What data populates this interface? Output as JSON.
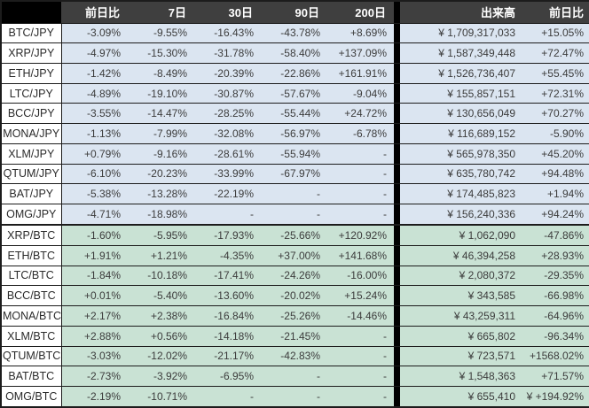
{
  "colors": {
    "header_bg": "#3f3f3f",
    "header_corner_bg": "#000000",
    "header_text": "#ffffff",
    "jpy_row_bg": "#dbe5f1",
    "btc_row_bg": "#c9e2d4",
    "name_cell_bg": "#ffffff",
    "grid": "#1c1c1c",
    "cell_text": "#3c3c3c",
    "divider": "#000000"
  },
  "chart_data": {
    "type": "table",
    "title": "",
    "columns": [
      {
        "key": "pair",
        "label": ""
      },
      {
        "key": "d1",
        "label": "前日比"
      },
      {
        "key": "d7",
        "label": "7日"
      },
      {
        "key": "d30",
        "label": "30日"
      },
      {
        "key": "d90",
        "label": "90日"
      },
      {
        "key": "d200",
        "label": "200日"
      },
      {
        "key": "volume",
        "label": "出来高"
      },
      {
        "key": "vol_d1",
        "label": "前日比"
      }
    ],
    "sections": [
      {
        "id": "jpy",
        "rows": [
          {
            "pair": "BTC/JPY",
            "d1": "-3.09%",
            "d7": "-9.55%",
            "d30": "-16.43%",
            "d90": "-43.78%",
            "d200": "+8.69%",
            "volume": "¥ 1,709,317,033",
            "vol_d1": "+15.05%"
          },
          {
            "pair": "XRP/JPY",
            "d1": "-4.97%",
            "d7": "-15.30%",
            "d30": "-31.78%",
            "d90": "-58.40%",
            "d200": "+137.09%",
            "volume": "¥ 1,587,349,448",
            "vol_d1": "+72.47%"
          },
          {
            "pair": "ETH/JPY",
            "d1": "-1.42%",
            "d7": "-8.49%",
            "d30": "-20.39%",
            "d90": "-22.86%",
            "d200": "+161.91%",
            "volume": "¥ 1,526,736,407",
            "vol_d1": "+55.45%"
          },
          {
            "pair": "LTC/JPY",
            "d1": "-4.89%",
            "d7": "-19.10%",
            "d30": "-30.87%",
            "d90": "-57.67%",
            "d200": "-9.04%",
            "volume": "¥ 155,857,151",
            "vol_d1": "+72.31%"
          },
          {
            "pair": "BCC/JPY",
            "d1": "-3.55%",
            "d7": "-14.47%",
            "d30": "-28.25%",
            "d90": "-55.44%",
            "d200": "+24.72%",
            "volume": "¥ 130,656,049",
            "vol_d1": "+70.27%"
          },
          {
            "pair": "MONA/JPY",
            "d1": "-1.13%",
            "d7": "-7.99%",
            "d30": "-32.08%",
            "d90": "-56.97%",
            "d200": "-6.78%",
            "volume": "¥ 116,689,152",
            "vol_d1": "-5.90%"
          },
          {
            "pair": "XLM/JPY",
            "d1": "+0.79%",
            "d7": "-9.16%",
            "d30": "-28.61%",
            "d90": "-55.94%",
            "d200": "-",
            "volume": "¥ 565,978,350",
            "vol_d1": "+45.20%"
          },
          {
            "pair": "QTUM/JPY",
            "d1": "-6.10%",
            "d7": "-20.23%",
            "d30": "-33.99%",
            "d90": "-67.97%",
            "d200": "-",
            "volume": "¥ 635,780,742",
            "vol_d1": "+94.48%"
          },
          {
            "pair": "BAT/JPY",
            "d1": "-5.38%",
            "d7": "-13.28%",
            "d30": "-22.19%",
            "d90": "-",
            "d200": "-",
            "volume": "¥ 174,485,823",
            "vol_d1": "+1.94%"
          },
          {
            "pair": "OMG/JPY",
            "d1": "-4.71%",
            "d7": "-18.98%",
            "d30": "-",
            "d90": "-",
            "d200": "-",
            "volume": "¥ 156,240,336",
            "vol_d1": "+94.24%"
          }
        ]
      },
      {
        "id": "btc",
        "rows": [
          {
            "pair": "XRP/BTC",
            "d1": "-1.60%",
            "d7": "-5.95%",
            "d30": "-17.93%",
            "d90": "-25.66%",
            "d200": "+120.92%",
            "volume": "¥ 1,062,090",
            "vol_d1": "-47.86%"
          },
          {
            "pair": "ETH/BTC",
            "d1": "+1.91%",
            "d7": "+1.21%",
            "d30": "-4.35%",
            "d90": "+37.00%",
            "d200": "+141.68%",
            "volume": "¥ 46,394,258",
            "vol_d1": "+28.93%"
          },
          {
            "pair": "LTC/BTC",
            "d1": "-1.84%",
            "d7": "-10.18%",
            "d30": "-17.41%",
            "d90": "-24.26%",
            "d200": "-16.00%",
            "volume": "¥ 2,080,372",
            "vol_d1": "-29.35%"
          },
          {
            "pair": "BCC/BTC",
            "d1": "+0.01%",
            "d7": "-5.40%",
            "d30": "-13.60%",
            "d90": "-20.02%",
            "d200": "+15.24%",
            "volume": "¥ 343,585",
            "vol_d1": "-66.98%"
          },
          {
            "pair": "MONA/BTC",
            "d1": "+2.17%",
            "d7": "+2.38%",
            "d30": "-16.84%",
            "d90": "-25.26%",
            "d200": "-14.46%",
            "volume": "¥ 43,259,311",
            "vol_d1": "-64.96%"
          },
          {
            "pair": "XLM/BTC",
            "d1": "+2.88%",
            "d7": "+0.56%",
            "d30": "-14.18%",
            "d90": "-21.45%",
            "d200": "-",
            "volume": "¥ 665,802",
            "vol_d1": "-96.34%"
          },
          {
            "pair": "QTUM/BTC",
            "d1": "-3.03%",
            "d7": "-12.02%",
            "d30": "-21.17%",
            "d90": "-42.83%",
            "d200": "-",
            "volume": "¥ 723,571",
            "vol_d1": "+1568.02%"
          },
          {
            "pair": "BAT/BTC",
            "d1": "-2.73%",
            "d7": "-3.92%",
            "d30": "-6.95%",
            "d90": "-",
            "d200": "-",
            "volume": "¥ 1,548,363",
            "vol_d1": "+71.57%"
          },
          {
            "pair": "OMG/BTC",
            "d1": "-2.19%",
            "d7": "-10.71%",
            "d30": "-",
            "d90": "-",
            "d200": "-",
            "volume": "¥ 655,410",
            "vol_d1": "¥ +194.92%"
          }
        ]
      }
    ]
  }
}
